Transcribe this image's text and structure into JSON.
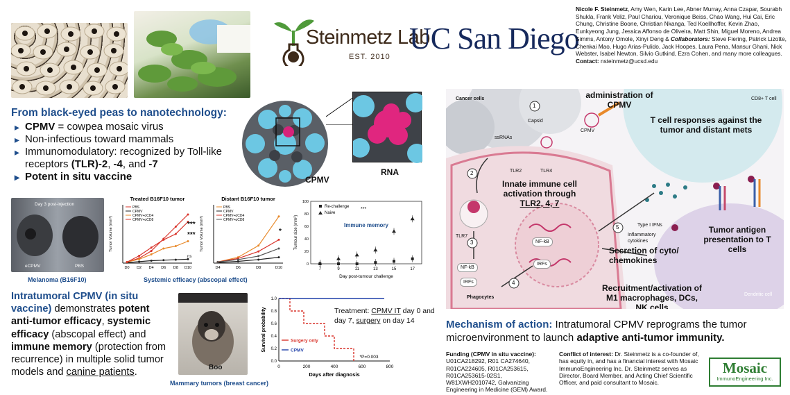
{
  "header": {
    "lab_name": "Steinmetz Lab",
    "lab_est": "EST. 2010",
    "university": "UC San Diego",
    "authors_lead": "Nicole F. Steinmetz",
    "authors_rest": ", Amy Wen, Karin Lee, Abner Murray, Anna Czapar, Sourabh Shukla, Frank Veliz, Paul Chariou, Veronique Beiss, Chao Wang, Hui Cai, Eric Chung, Christine Boone, Christian Nkanga, Ted Koellhoffer, Kevin Zhao, Eunkyeong Jung, Jessica Affonso de Oliveira, Matt Shin, Miguel Moreno, Andrea Simms, Antony Omole, Xinyi Deng &",
    "collab_label": "Collaborators:",
    "collab_text": " Steve Fiering, Patrick Lizotte, Chenkai Mao, Hugo Arias-Pulido, Jack Hoopes, Laura Pena, Mansur Ghani, Nick Webster, Isabel Newton, Silvio Gutkind, Ezra Cohen, and many more colleagues.",
    "contact_label": "Contact:",
    "contact_value": " nsteinmetz@ucsd.edu"
  },
  "intro": {
    "title": "From black-eyed peas to nanotechnology:",
    "b1_bold": "CPMV",
    "b1_rest": " = cowpea mosaic virus",
    "b2": "Non-infectious toward mammals",
    "b3_pre": "Immunomodulatory: recognized by Toll-like receptors ",
    "b3_bold1": "(TLR)-2",
    "b3_mid": ", ",
    "b3_bold2": "-4",
    "b3_mid2": ", and ",
    "b3_bold3": "-7",
    "b4": "Potent in situ vaccine",
    "label_cpmv": "CPMV",
    "label_rna": "RNA"
  },
  "efficacy": {
    "mouse_photo_label": "Day 3 post-injection",
    "photo_left": "eCPMV",
    "photo_right": "PBS",
    "melanoma_caption": "Melanoma (B16F10)",
    "systemic_caption": "Systemic efficacy (abscopal effect)",
    "sig_treated": "***",
    "sig_treated2": "***",
    "ns": "ns",
    "sig_distant": "*"
  },
  "summary": {
    "t1": "Intratumoral CPMV (in situ vaccine)",
    "t2": " demonstrates ",
    "t3": "potent anti-tumor efficacy",
    "t4": ", ",
    "t5": "systemic efficacy",
    "t6": " (abscopal effect) and ",
    "t7": "immune memory",
    "t8": " (protection from recurrence) in multiple solid tumor models and ",
    "t9": "canine patients",
    "t10": "."
  },
  "dog": {
    "name": "Boo",
    "caption": "Mammary tumors (breast cancer)",
    "treatment_pre": "Treatment: ",
    "treatment_link": "CPMV IT",
    "treatment_mid": " day 0 and day 7, ",
    "treatment_link2": "surgery",
    "treatment_post": " on day 14"
  },
  "mechanism": {
    "intratumoral": "Intratumoral administration of CPMV",
    "cancer_cells": "Cancer cells",
    "cd8": "CD8+ T cell",
    "tcell_resp": "T cell responses against the tumor and distant mets",
    "capsid": "Capsid",
    "ssrnas": "ssRNAs",
    "cpmv": "CPMV",
    "tlr2": "TLR2",
    "tlr4": "TLR4",
    "tlr7": "TLR7",
    "innate_pre": "Innate immune cell activation through ",
    "innate_link": "TLR2, 4, 7",
    "nfkb": "NF-kB",
    "irfs": "IRFs",
    "nfkb2": "NF-kB",
    "irfs2": "IRFs",
    "type1": "Type I IFNs",
    "inflam": "Inflammatory cytokines",
    "secretion": "Secretion of cyto/ chemokines",
    "recruit": "Recruitment/activation of M1 macrophages, DCs, NK cells",
    "antigen": "Tumor antigen presentation to T cells",
    "dendritic": "Dendritic cell",
    "phagocytes": "Phagocytes",
    "n1": "1",
    "n2": "2",
    "n3": "3",
    "n4": "4",
    "n5": "5",
    "moa_label": "Mechanism of action:",
    "moa_text1": " Intratumoral CPMV reprograms the tumor microenvironment to launch ",
    "moa_bold": "adaptive anti-tumor immunity."
  },
  "footer": {
    "funding_title": "Funding (CPMV in situ vaccine):",
    "funding_text": "U01CA218292, R01 CA274640, R01CA224605, R01CA253615, R01CA253615-02S1, W81XWH2010742, Galvanizing Engineering in Medicine (GEM) Award.",
    "coi_title": "Conflict of interest:",
    "coi_text": " Dr. Steinmetz is a co-founder of, has equity in, and has a financial interest with Mosaic ImmunoEngineering Inc. Dr. Steinmetz serves as Director, Board Member, and Acting Chief Scientific Officer, and paid consultant to Mosaic.",
    "mosaic_name": "Mosaic",
    "mosaic_sub": "ImmunoEngineering Inc."
  },
  "colors": {
    "accent": "#1f4e8c",
    "red": "#d9342b",
    "orange": "#e8892a",
    "mosaic_green": "#2e7d32"
  },
  "chart_data": [
    {
      "type": "line",
      "title": "Treated B16F10 tumor",
      "ylabel": "Tumor Volume (mm³)",
      "x": [
        "D0",
        "D2",
        "D4",
        "D6",
        "D8",
        "D10"
      ],
      "ylim": [
        0,
        1200
      ],
      "series": [
        {
          "name": "PBS",
          "values": [
            20,
            100,
            250,
            500,
            750,
            1000
          ],
          "color": "#d9342b"
        },
        {
          "name": "CPMV",
          "values": [
            10,
            30,
            50,
            60,
            70,
            80
          ],
          "color": "#222"
        },
        {
          "name": "CPMV+αCD4",
          "values": [
            20,
            80,
            180,
            300,
            350,
            450
          ],
          "color": "#e8892a"
        },
        {
          "name": "CPMV+αCD8",
          "values": [
            20,
            150,
            320,
            480,
            600,
            850
          ],
          "color": "#d9342b"
        }
      ]
    },
    {
      "type": "line",
      "title": "Distant B16F10 tumor",
      "ylabel": "Tumor Volume (mm³)",
      "x": [
        "D4",
        "D6",
        "D8",
        "D10"
      ],
      "ylim": [
        0,
        1000
      ],
      "series": [
        {
          "name": "PBS",
          "values": [
            20,
            100,
            300,
            800
          ],
          "color": "#e8892a"
        },
        {
          "name": "CPMV",
          "values": [
            10,
            30,
            60,
            100
          ],
          "color": "#222"
        },
        {
          "name": "CPMV+αCD4",
          "values": [
            20,
            80,
            200,
            400
          ],
          "color": "#d9342b"
        },
        {
          "name": "CPMV+αCD8",
          "values": [
            20,
            60,
            120,
            250
          ],
          "color": "#555"
        }
      ]
    },
    {
      "type": "scatter",
      "title": "Immune memory",
      "xlabel": "Day post-tumour challenge",
      "ylabel": "Tumour size (mm²)",
      "x": [
        7,
        9,
        11,
        13,
        15,
        17
      ],
      "ylim": [
        0,
        100
      ],
      "yticks": [
        0,
        20,
        40,
        60,
        80,
        100
      ],
      "series": [
        {
          "name": "Re-challenge",
          "values": [
            0,
            0,
            0,
            2,
            4,
            8
          ],
          "marker": "square"
        },
        {
          "name": "Naive",
          "values": [
            1,
            8,
            14,
            22,
            52,
            72
          ],
          "marker": "triangle"
        }
      ],
      "legend_sig": "***"
    },
    {
      "type": "line",
      "title": "",
      "ylabel": "Survival probability",
      "xlabel": "Days after diagnosis",
      "xlim": [
        0,
        800
      ],
      "ylim": [
        0,
        1.0
      ],
      "xticks": [
        0,
        200,
        400,
        600,
        800
      ],
      "yticks": [
        0.0,
        0.2,
        0.4,
        0.6,
        0.8,
        1.0
      ],
      "series": [
        {
          "name": "Surgery only",
          "points": [
            [
              0,
              1.0
            ],
            [
              80,
              1.0
            ],
            [
              80,
              0.8
            ],
            [
              180,
              0.8
            ],
            [
              180,
              0.6
            ],
            [
              330,
              0.6
            ],
            [
              330,
              0.4
            ],
            [
              400,
              0.4
            ],
            [
              400,
              0.2
            ],
            [
              540,
              0.2
            ],
            [
              540,
              0.0
            ]
          ],
          "color": "#d9342b"
        },
        {
          "name": "CPMV",
          "points": [
            [
              0,
              1.0
            ],
            [
              760,
              1.0
            ]
          ],
          "color": "#1f3fa8"
        }
      ],
      "annotation": "*P=0.003"
    }
  ]
}
